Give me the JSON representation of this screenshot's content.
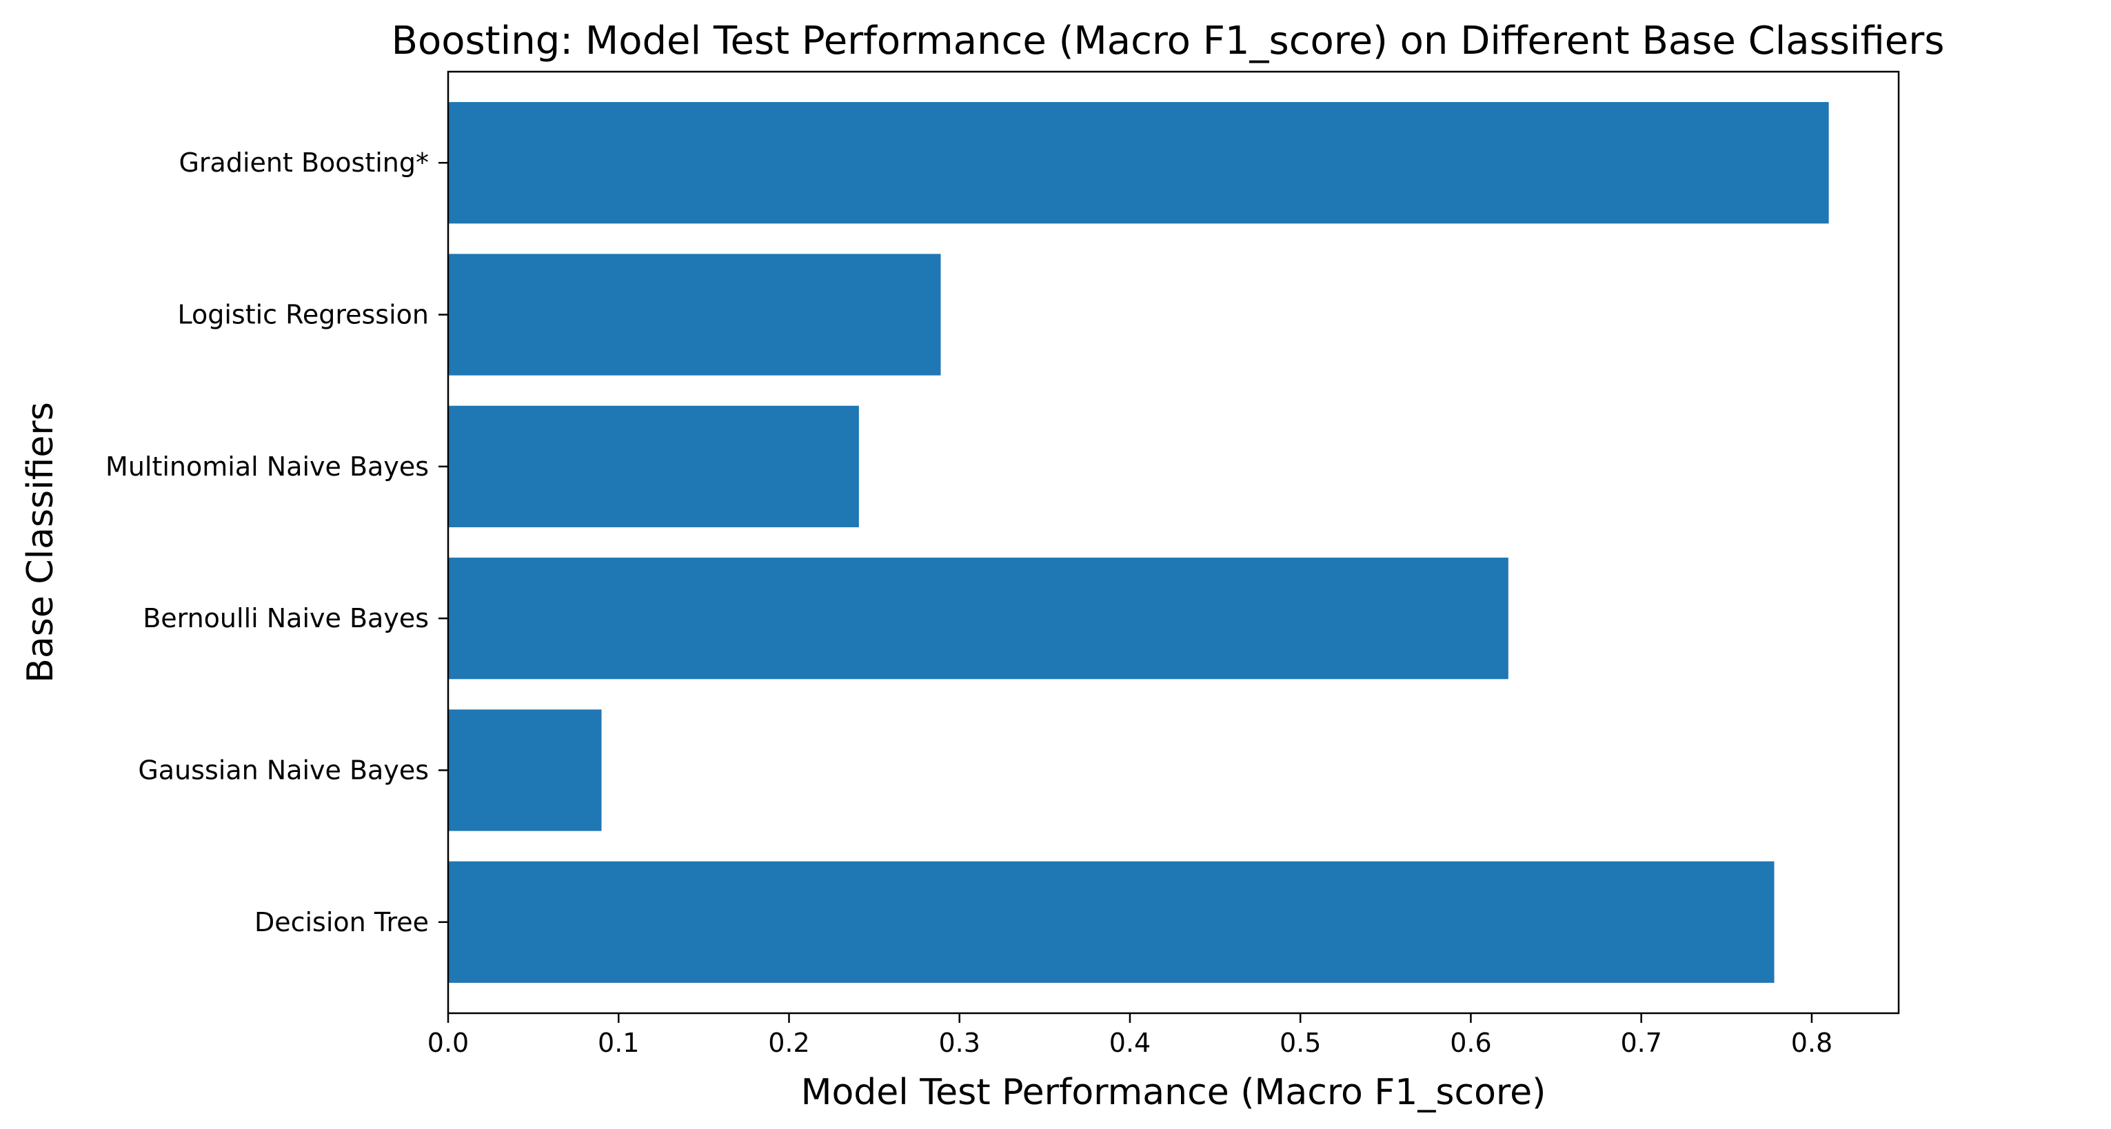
{
  "chart_data": {
    "type": "bar",
    "orientation": "horizontal",
    "title": "Boosting: Model Test Performance (Macro F1_score) on Different Base Classifiers",
    "xlabel": "Model Test Performance (Macro F1_score)",
    "ylabel": "Base Classifiers",
    "categories": [
      "Decision Tree",
      "Gaussian Naive Bayes",
      "Bernoulli Naive Bayes",
      "Multinomial Naive Bayes",
      "Logistic Regression",
      "Gradient Boosting*"
    ],
    "values": [
      0.778,
      0.09,
      0.622,
      0.241,
      0.289,
      0.81
    ],
    "xlim": [
      0,
      0.851
    ],
    "xticks": [
      0.0,
      0.1,
      0.2,
      0.3,
      0.4,
      0.5,
      0.6,
      0.7,
      0.8
    ],
    "xtick_labels": [
      "0.0",
      "0.1",
      "0.2",
      "0.3",
      "0.4",
      "0.5",
      "0.6",
      "0.7",
      "0.8"
    ],
    "grid": false,
    "legend": "none",
    "bar_color": "#1f77b4"
  }
}
